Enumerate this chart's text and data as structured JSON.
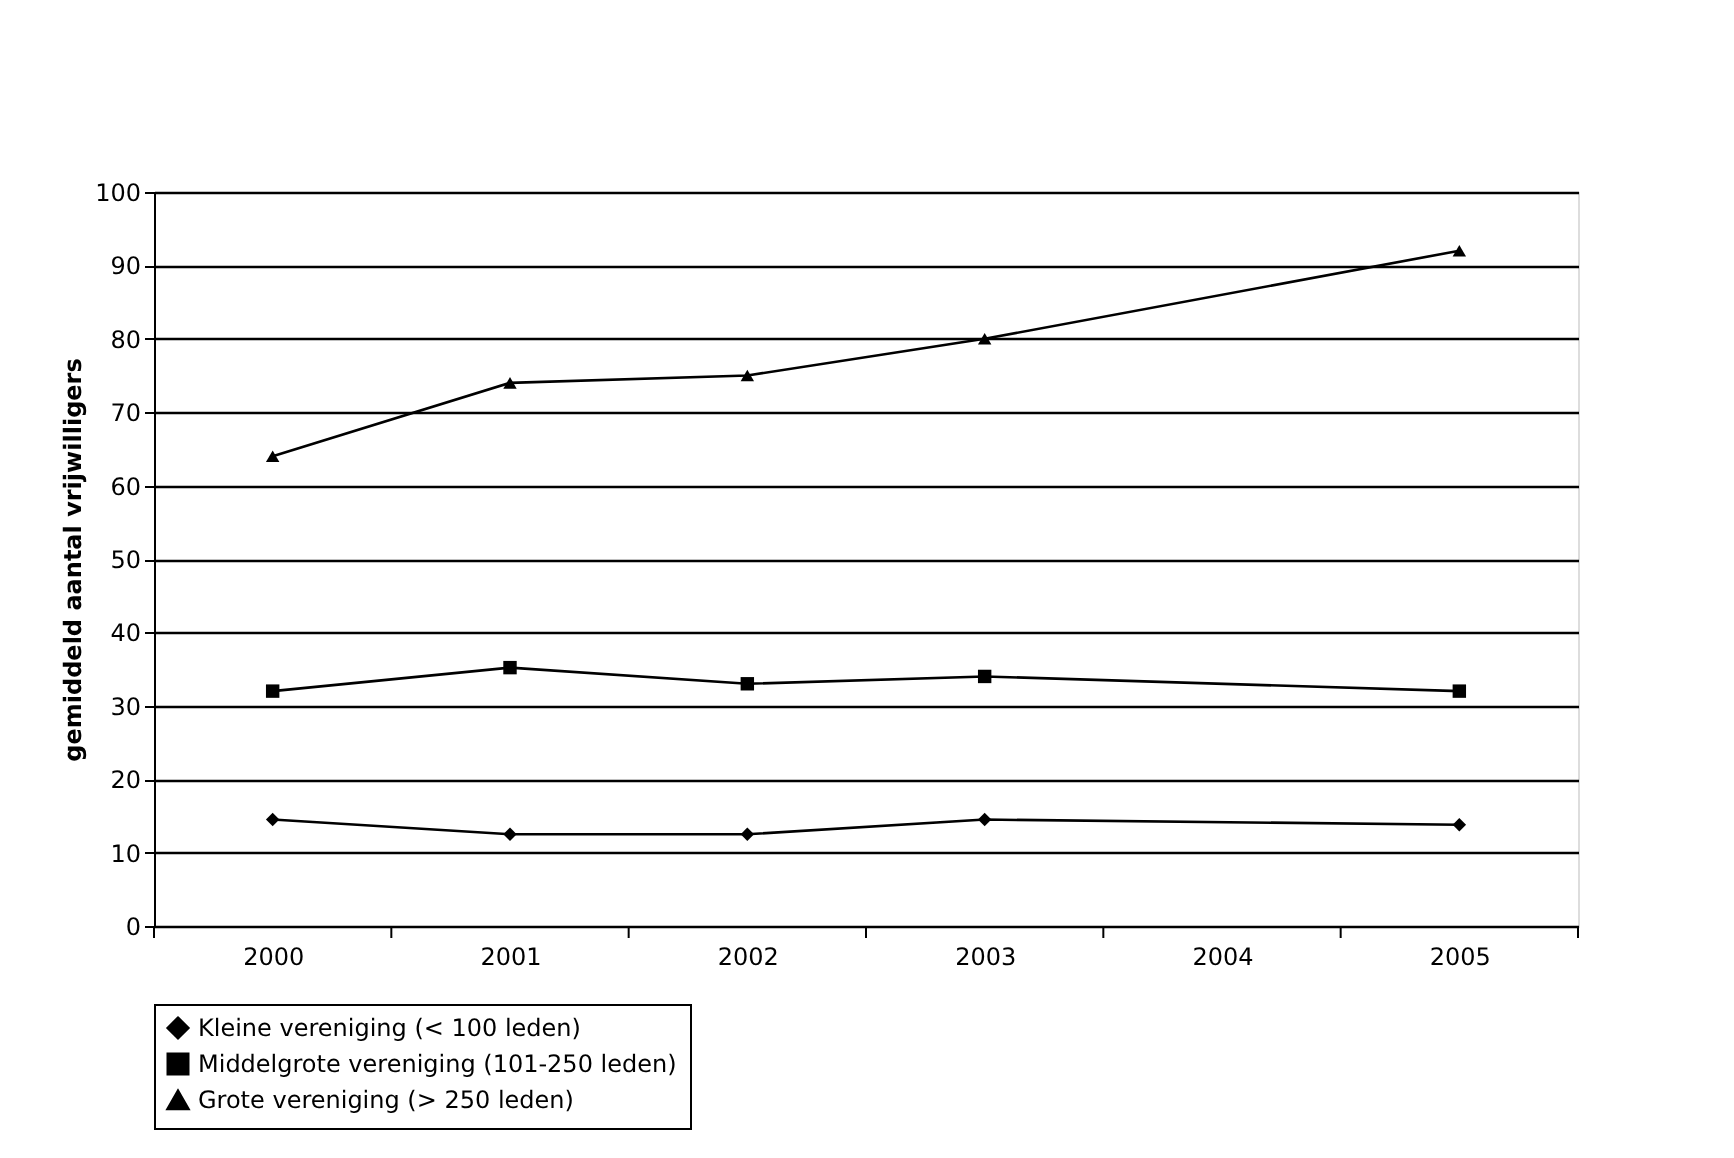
{
  "chart_data": {
    "type": "line",
    "ylabel": "gemiddeld aantal vrijwilligers",
    "categories": [
      "2000",
      "2001",
      "2002",
      "2003",
      "2004",
      "2005"
    ],
    "ylim": [
      0,
      100
    ],
    "yticks": [
      0,
      10,
      20,
      30,
      40,
      50,
      60,
      70,
      80,
      90,
      100
    ],
    "grid": "y",
    "legend": "bottom",
    "line_style": "solid",
    "series": [
      {
        "name": "Kleine vereniging (< 100 leden)",
        "color": "#000000",
        "marker": "diamond",
        "values": [
          14.5,
          12.5,
          12.5,
          14.5,
          null,
          13.8
        ]
      },
      {
        "name": "Middelgrote vereniging (101-250 leden)",
        "color": "#000000",
        "marker": "square",
        "values": [
          32,
          35.2,
          33,
          34,
          null,
          32
        ]
      },
      {
        "name": "Grote vereniging (> 250 leden)",
        "color": "#000000",
        "marker": "triangle",
        "values": [
          64,
          74,
          75,
          80,
          null,
          92
        ]
      }
    ]
  }
}
